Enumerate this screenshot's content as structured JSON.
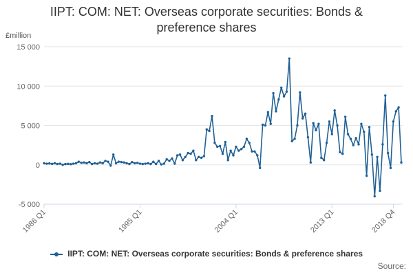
{
  "colors": {
    "series": "#206095",
    "grid": "#e6e6e6",
    "axis": "#ccd6eb",
    "text": "#666666"
  },
  "chart_data": {
    "type": "line",
    "title": "IIPT: COM: NET: Overseas corporate securities: Bonds & preference shares",
    "title_lines": [
      "IIPT: COM: NET: Overseas corporate securities: Bonds &",
      "preference shares"
    ],
    "unit_label": "£million",
    "xlabel": "",
    "ylabel": "",
    "ylim": [
      -5000,
      15000
    ],
    "y_ticks": [
      -5000,
      0,
      5000,
      10000,
      15000
    ],
    "y_tick_labels": [
      "-5 000",
      "0",
      "5 000",
      "10 000",
      "15 000"
    ],
    "x_tick_labels": [
      "1986 Q1",
      "1995 Q1",
      "2004 Q1",
      "2013 Q1",
      "2018 Q4"
    ],
    "x_tick_quarters": [
      0,
      36,
      72,
      108,
      131
    ],
    "grid": "horizontal",
    "legend_position": "bottom-center",
    "source_label": "Source:",
    "series": [
      {
        "name": "IIPT: COM: NET: Overseas corporate securities: Bonds & preference shares",
        "x_start": "1986 Q1",
        "frequency": "quarterly",
        "values": [
          200,
          150,
          180,
          120,
          200,
          100,
          150,
          0,
          100,
          120,
          80,
          150,
          200,
          400,
          250,
          300,
          200,
          350,
          100,
          200,
          150,
          300,
          200,
          500,
          400,
          -100,
          1300,
          200,
          400,
          350,
          300,
          200,
          100,
          350,
          200,
          250,
          150,
          100,
          150,
          200,
          100,
          400,
          100,
          500,
          50,
          150,
          700,
          500,
          800,
          150,
          1200,
          1300,
          600,
          1000,
          1500,
          1400,
          1800,
          600,
          1000,
          900,
          1100,
          4500,
          4300,
          6200,
          2800,
          2300,
          2400,
          1400,
          2900,
          600,
          1800,
          1200,
          2300,
          1800,
          2000,
          2300,
          3300,
          2800,
          1700,
          1700,
          1200,
          -400,
          5100,
          5000,
          6700,
          5200,
          9100,
          6800,
          8300,
          9800,
          8700,
          9300,
          13500,
          3000,
          3300,
          5000,
          9200,
          5900,
          6500,
          3500,
          300,
          5300,
          4400,
          5200,
          900,
          600,
          2800,
          5500,
          3900,
          6900,
          5000,
          1600,
          1400,
          6100,
          3900,
          3300,
          2500,
          3400,
          2600,
          5200,
          4200,
          -1400,
          4800,
          1300,
          -4000,
          1000,
          -3300,
          2600,
          8800,
          1500,
          -400,
          5500,
          6800,
          7300,
          300
        ]
      }
    ]
  }
}
